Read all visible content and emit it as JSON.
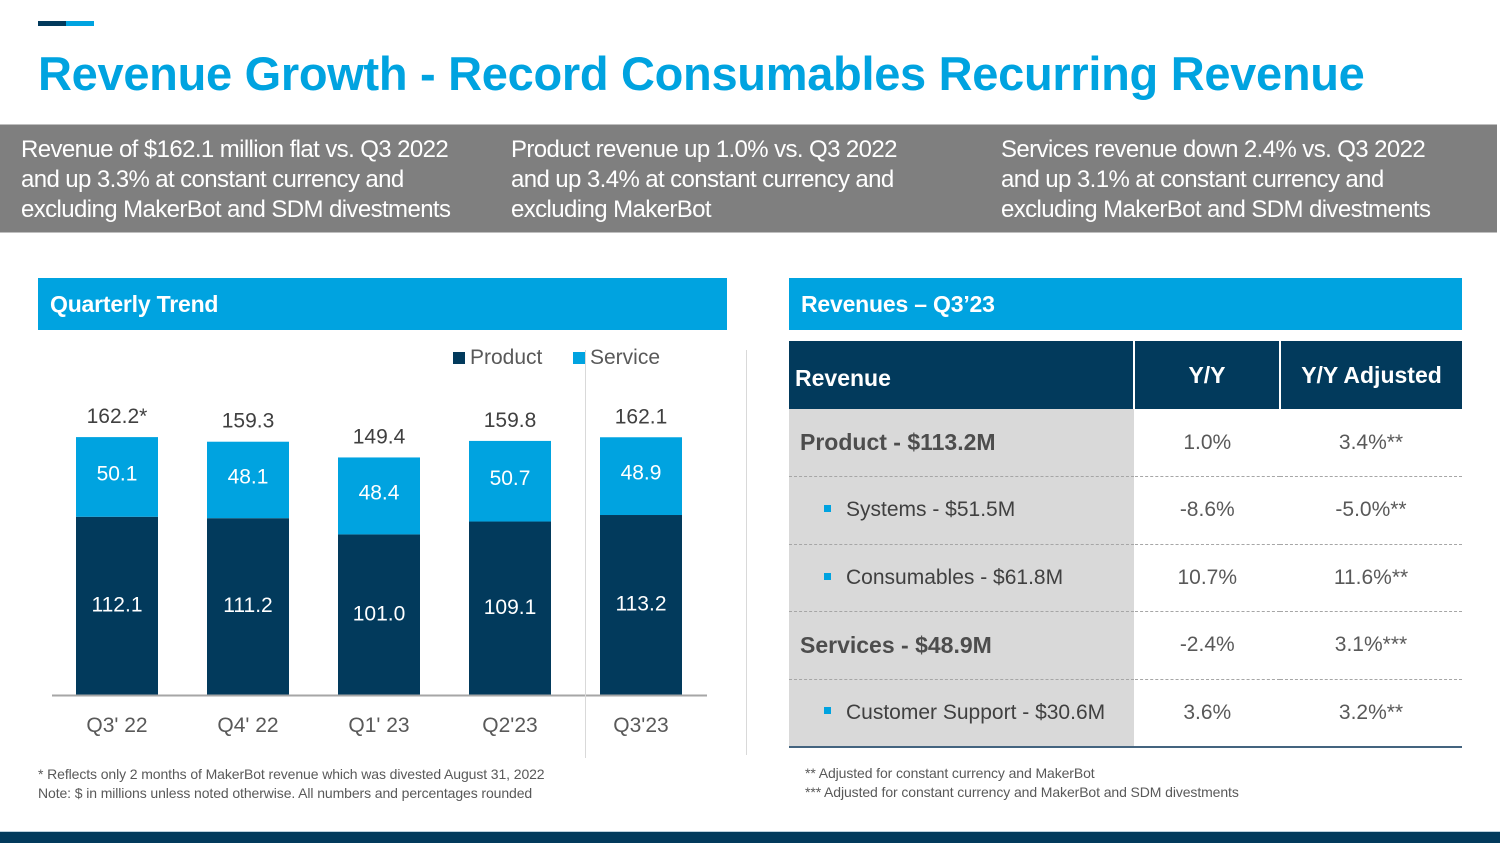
{
  "title": "Revenue Growth - Record Consumables Recurring Revenue",
  "colors": {
    "accent": "#00a3e0",
    "dark_navy": "#023a5c",
    "band_gray": "#7f7f7f",
    "table_name_bg": "#d9d9d9"
  },
  "summary": [
    "Revenue of $162.1 million flat vs. Q3 2022\nand up 3.3% at constant currency and\nexcluding MakerBot and SDM divestments",
    "Product revenue up 1.0% vs. Q3 2022\nand up 3.4% at constant currency and\nexcluding MakerBot",
    "Services revenue down 2.4% vs. Q3 2022\nand up 3.1% at constant currency and\nexcluding MakerBot and SDM divestments"
  ],
  "left_section": {
    "header": "Quarterly Trend",
    "footnotes": [
      "* Reflects only 2 months of MakerBot revenue which was divested August 31, 2022",
      "Note: $ in millions unless noted otherwise. All numbers and percentages rounded"
    ]
  },
  "chart_data": {
    "type": "bar",
    "stacked": true,
    "title": "Quarterly Trend",
    "xlabel": "",
    "ylabel": "",
    "unit": "$ millions",
    "categories": [
      "Q3' 22",
      "Q4' 22",
      "Q1' 23",
      "Q2'23",
      "Q3'23"
    ],
    "series": [
      {
        "name": "Product",
        "color": "#023a5c",
        "values": [
          112.1,
          111.2,
          101.0,
          109.1,
          113.2
        ],
        "labels": [
          "112.1",
          "111.2",
          "101.0",
          "109.1",
          "113.2"
        ]
      },
      {
        "name": "Service",
        "color": "#00a3e0",
        "values": [
          50.1,
          48.1,
          48.4,
          50.7,
          48.9
        ],
        "labels": [
          "50.1",
          "48.1",
          "48.4",
          "50.7",
          "48.9"
        ]
      }
    ],
    "totals": [
      162.2,
      159.3,
      149.4,
      159.8,
      162.1
    ],
    "total_labels": [
      "162.2*",
      "159.3",
      "149.4",
      "159.8",
      "162.1"
    ],
    "ylim": [
      0,
      170
    ],
    "grid": false,
    "legend": "top-right",
    "y_axis_visible": false
  },
  "right_section": {
    "header": "Revenues – Q3’23",
    "table": {
      "columns": [
        "Revenue",
        "Y/Y",
        "Y/Y Adjusted"
      ],
      "rows": [
        {
          "name": "Product - $113.2M",
          "level": "main",
          "yy": "1.0%",
          "adj": "3.4%**"
        },
        {
          "name": "Systems - $51.5M",
          "level": "sub",
          "yy": "-8.6%",
          "adj": "-5.0%**"
        },
        {
          "name": "Consumables - $61.8M",
          "level": "sub",
          "yy": "10.7%",
          "adj": "11.6%**"
        },
        {
          "name": "Services - $48.9M",
          "level": "main",
          "yy": "-2.4%",
          "adj": "3.1%***"
        },
        {
          "name": "Customer Support - $30.6M",
          "level": "sub",
          "yy": "3.6%",
          "adj": "3.2%**"
        }
      ]
    },
    "footnotes": [
      "** Adjusted for constant currency and MakerBot",
      "*** Adjusted for constant currency and MakerBot and SDM divestments"
    ]
  }
}
